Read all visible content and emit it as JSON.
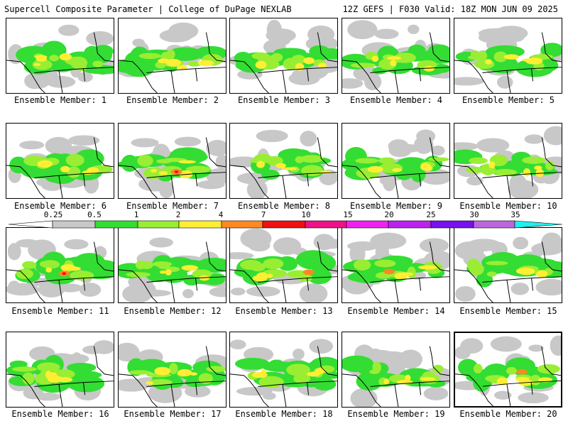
{
  "header": {
    "title_left": "Supercell Composite Parameter | College of DuPage NEXLAB",
    "title_right": "12Z GEFS | F030 Valid: 18Z MON JUN 09 2025"
  },
  "colorbar": {
    "ticks": [
      "0.25",
      "0.5",
      "1",
      "2",
      "4",
      "7",
      "10",
      "15",
      "20",
      "25",
      "30",
      "35"
    ],
    "colors": [
      "#ffffff",
      "#c8c8c8",
      "#33dd33",
      "#99ee33",
      "#ffee33",
      "#ff8822",
      "#ee1111",
      "#ee1188",
      "#ee22ee",
      "#bb22ee",
      "#7711ee",
      "#bb66dd",
      "#22eeee"
    ]
  },
  "members": [
    {
      "label": "Ensemble Member: 1",
      "selected": false
    },
    {
      "label": "Ensemble Member: 2",
      "selected": false
    },
    {
      "label": "Ensemble Member: 3",
      "selected": false
    },
    {
      "label": "Ensemble Member: 4",
      "selected": false
    },
    {
      "label": "Ensemble Member: 5",
      "selected": false
    },
    {
      "label": "Ensemble Member: 6",
      "selected": false
    },
    {
      "label": "Ensemble Member: 7",
      "selected": false
    },
    {
      "label": "Ensemble Member: 8",
      "selected": false
    },
    {
      "label": "Ensemble Member: 9",
      "selected": false
    },
    {
      "label": "Ensemble Member: 10",
      "selected": false
    },
    {
      "label": "Ensemble Member: 11",
      "selected": false
    },
    {
      "label": "Ensemble Member: 12",
      "selected": false
    },
    {
      "label": "Ensemble Member: 13",
      "selected": false
    },
    {
      "label": "Ensemble Member: 14",
      "selected": false
    },
    {
      "label": "Ensemble Member: 15",
      "selected": false
    },
    {
      "label": "Ensemble Member: 16",
      "selected": false
    },
    {
      "label": "Ensemble Member: 17",
      "selected": false
    },
    {
      "label": "Ensemble Member: 18",
      "selected": false
    },
    {
      "label": "Ensemble Member: 19",
      "selected": false
    },
    {
      "label": "Ensemble Member: 20",
      "selected": true
    }
  ]
}
